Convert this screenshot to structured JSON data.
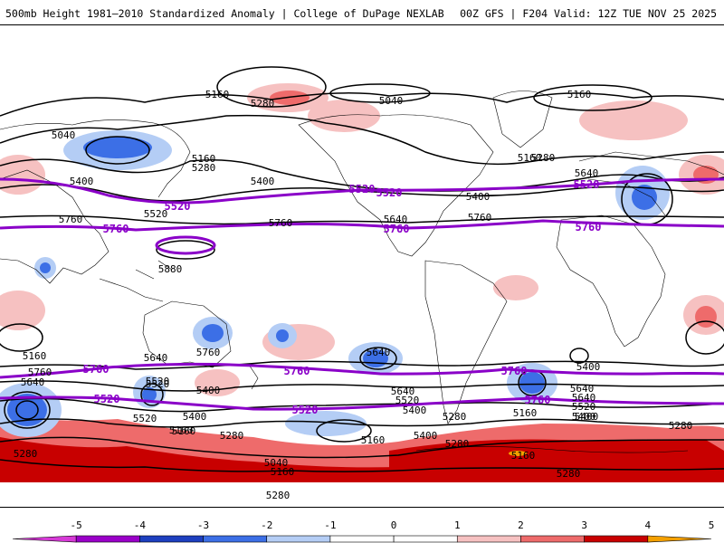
{
  "header": {
    "title_left": "500mb Height 1981–2010 Standardized Anomaly | College of DuPage NEXLAB",
    "title_right": "00Z GFS | F204 Valid: 12Z TUE NOV 25 2025"
  },
  "colors": {
    "heavy_contour": "#8a00c8",
    "contour": "#000000",
    "land_outline": "#000000",
    "bins": [
      "#d63ad6",
      "#9a00c8",
      "#1d3fbf",
      "#3c6fe6",
      "#b4cdf5",
      "#ffffff",
      "#ffffff",
      "#f6c1c1",
      "#ee6b6b",
      "#c80000",
      "#f4a000"
    ]
  },
  "colorbar": {
    "ticks": [
      "-5",
      "-4",
      "-3",
      "-2",
      "-1",
      "0",
      "1",
      "2",
      "3",
      "4",
      "5"
    ]
  },
  "contour_labels": {
    "black": [
      "5160",
      "5040",
      "5160",
      "5280",
      "5040",
      "5160",
      "5280",
      "5400",
      "5160",
      "5280",
      "5400",
      "5520",
      "5640",
      "5400",
      "5760",
      "5880",
      "5760",
      "5640",
      "5760",
      "5640",
      "5520",
      "5400",
      "5280",
      "5160",
      "5040",
      "5760",
      "5760",
      "5640",
      "5400",
      "5520",
      "5400",
      "5280",
      "5160",
      "5160",
      "5280",
      "5160",
      "5640",
      "5520",
      "5400",
      "5280",
      "5160",
      "5160",
      "5280",
      "5400",
      "5640",
      "5520",
      "5400",
      "5280",
      "5160",
      "5280",
      "5640",
      "5640",
      "5400",
      "5520"
    ],
    "heavy_5520": [
      "5520",
      "5520",
      "5520",
      "5520",
      "5520",
      "5520"
    ],
    "heavy_5760": [
      "5760",
      "5760",
      "5760",
      "5760",
      "5760",
      "5760",
      "5760"
    ]
  }
}
